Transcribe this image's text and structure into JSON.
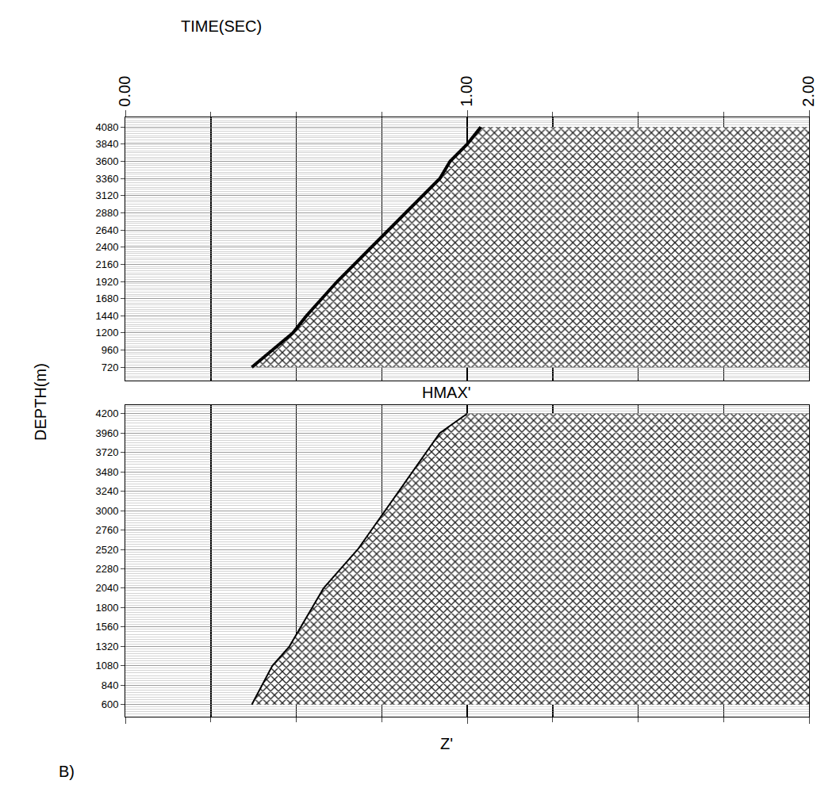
{
  "figure": {
    "xlabel": "TIME(SEC)",
    "ylabel": "DEPTH(m)",
    "panel_label": "B)"
  },
  "chart_data": [
    {
      "type": "line",
      "title": "HMAX'",
      "x": [
        0.37,
        0.49,
        0.53,
        0.62,
        0.72,
        0.82,
        0.92,
        0.95,
        1.0,
        1.04
      ],
      "y": [
        720,
        1200,
        1440,
        1920,
        2400,
        2880,
        3360,
        3600,
        3840,
        4080
      ],
      "xlim": [
        0,
        2
      ],
      "xticks": [
        {
          "value": 0,
          "label": "0.00"
        },
        {
          "value": 1,
          "label": "1.00"
        },
        {
          "value": 2,
          "label": "2.00"
        }
      ],
      "ylim": [
        534,
        4220
      ],
      "yticks": [
        720,
        960,
        1200,
        1440,
        1680,
        1920,
        2160,
        2400,
        2640,
        2880,
        3120,
        3360,
        3600,
        3840,
        4080
      ],
      "grid": true
    },
    {
      "type": "line",
      "title": "Z'",
      "x": [
        0.37,
        0.43,
        0.48,
        0.58,
        0.68,
        0.76,
        0.84,
        0.92,
        1.0
      ],
      "y": [
        600,
        1080,
        1320,
        2040,
        2520,
        3000,
        3480,
        3960,
        4200
      ],
      "xlim": [
        0,
        2
      ],
      "xticks": [
        {
          "value": 0,
          "label": "0.00"
        },
        {
          "value": 1,
          "label": "1.00"
        },
        {
          "value": 2,
          "label": "2.00"
        }
      ],
      "ylim": [
        450,
        4310
      ],
      "yticks": [
        600,
        840,
        1080,
        1320,
        1560,
        1800,
        2040,
        2280,
        2520,
        2760,
        3000,
        3240,
        3480,
        3720,
        3960,
        4200
      ],
      "grid": true,
      "tick_labels": "y"
    }
  ]
}
